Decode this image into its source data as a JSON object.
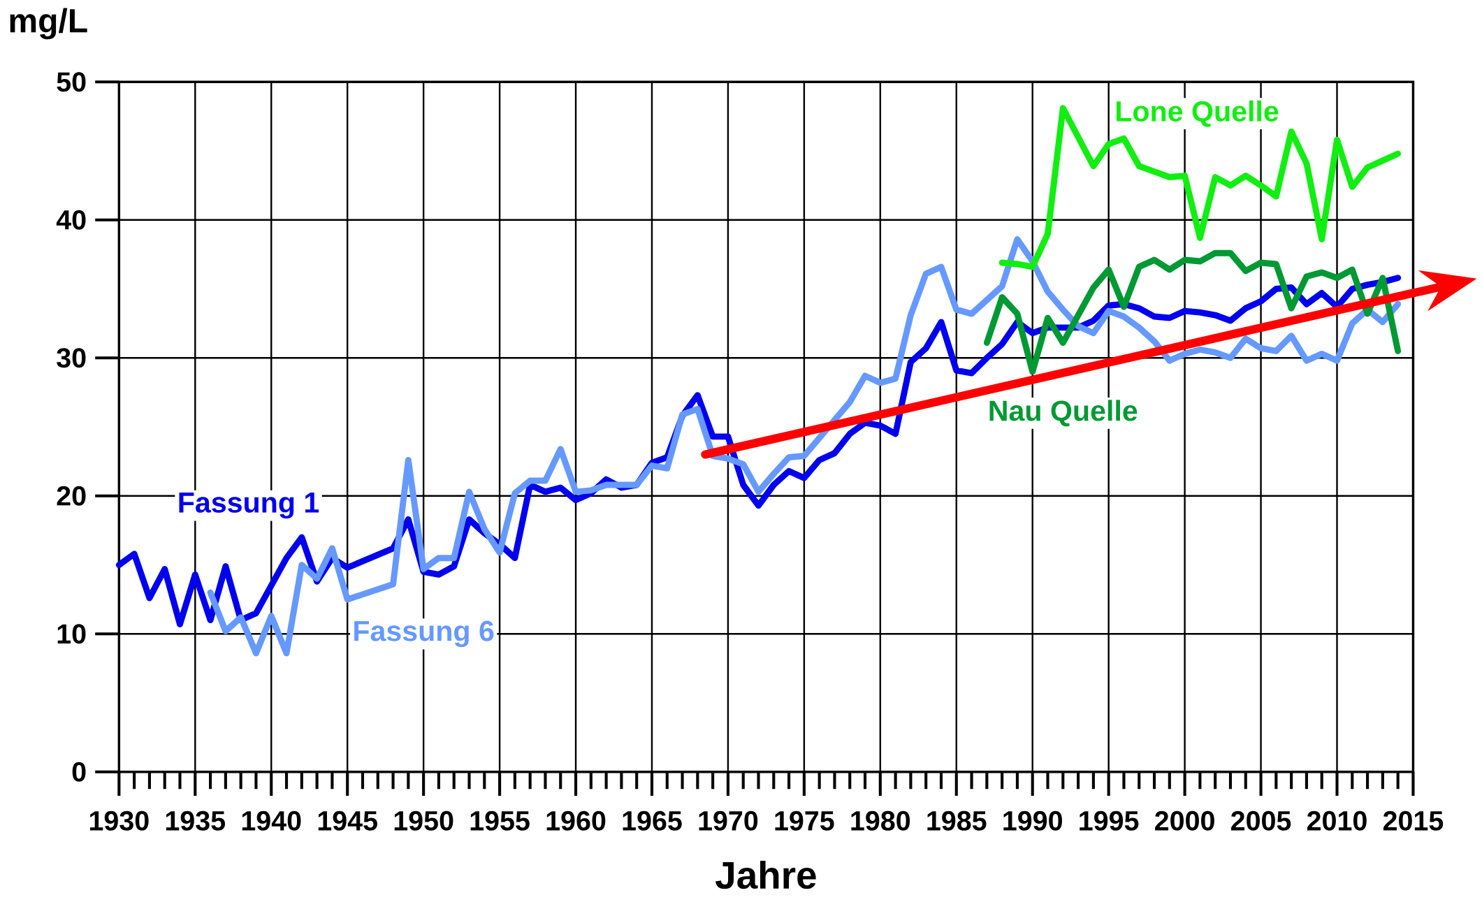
{
  "chart_data": {
    "type": "line",
    "xlabel": "Jahre",
    "ylabel": "mg/L",
    "xlim": [
      1930,
      2015
    ],
    "ylim": [
      0,
      50
    ],
    "xticks": [
      1930,
      1935,
      1940,
      1945,
      1950,
      1955,
      1960,
      1965,
      1970,
      1975,
      1980,
      1985,
      1990,
      1995,
      2000,
      2005,
      2010,
      2015
    ],
    "yticks": [
      0,
      10,
      20,
      30,
      40,
      50
    ],
    "grid": true,
    "line_style": "solid",
    "series": [
      {
        "name": "Fassung 1",
        "color": "#0000ee",
        "x": [
          1930,
          1931,
          1932,
          1933,
          1934,
          1935,
          1936,
          1937,
          1938,
          1939,
          1940,
          1941,
          1942,
          1943,
          1944,
          1945,
          1948,
          1949,
          1950,
          1951,
          1952,
          1953,
          1954,
          1955,
          1956,
          1957,
          1958,
          1959,
          1960,
          1961,
          1962,
          1963,
          1964,
          1965,
          1966,
          1967,
          1968,
          1969,
          1970,
          1971,
          1972,
          1973,
          1974,
          1975,
          1976,
          1977,
          1978,
          1979,
          1980,
          1981,
          1982,
          1983,
          1984,
          1985,
          1986,
          1987,
          1988,
          1989,
          1990,
          1991,
          1992,
          1993,
          1994,
          1995,
          1996,
          1997,
          1998,
          1999,
          2000,
          2001,
          2002,
          2003,
          2004,
          2005,
          2006,
          2007,
          2008,
          2009,
          2010,
          2011,
          2012,
          2013,
          2014
        ],
        "values": [
          15.0,
          15.8,
          12.6,
          14.7,
          10.7,
          14.3,
          11.0,
          14.9,
          11.0,
          11.5,
          13.5,
          15.5,
          17.0,
          13.8,
          15.5,
          14.8,
          16.2,
          18.3,
          14.5,
          14.3,
          14.9,
          18.3,
          17.3,
          16.5,
          15.5,
          20.8,
          20.3,
          20.6,
          19.7,
          20.2,
          21.2,
          20.6,
          20.8,
          22.4,
          22.8,
          25.8,
          27.3,
          24.3,
          24.3,
          20.8,
          19.3,
          20.8,
          21.8,
          21.3,
          22.6,
          23.1,
          24.5,
          25.3,
          25.1,
          24.5,
          29.7,
          30.7,
          32.6,
          29.1,
          28.9,
          30.0,
          31.0,
          32.6,
          31.8,
          32.2,
          32.2,
          32.2,
          32.7,
          33.8,
          33.9,
          33.6,
          33.0,
          32.9,
          33.4,
          33.3,
          33.1,
          32.7,
          33.6,
          34.1,
          35.0,
          35.1,
          33.9,
          34.7,
          33.7,
          35.0,
          35.3,
          35.5,
          35.8
        ]
      },
      {
        "name": "Fassung 6",
        "color": "#6699ff",
        "x": [
          1936,
          1937,
          1938,
          1939,
          1940,
          1941,
          1942,
          1943,
          1944,
          1945,
          1948,
          1949,
          1950,
          1951,
          1952,
          1953,
          1954,
          1955,
          1956,
          1957,
          1958,
          1959,
          1960,
          1961,
          1962,
          1963,
          1964,
          1965,
          1966,
          1967,
          1968,
          1969,
          1970,
          1971,
          1972,
          1973,
          1974,
          1975,
          1976,
          1977,
          1978,
          1979,
          1980,
          1981,
          1982,
          1983,
          1984,
          1985,
          1986,
          1987,
          1988,
          1989,
          1990,
          1991,
          1992,
          1993,
          1994,
          1995,
          1996,
          1997,
          1998,
          1999,
          2000,
          2001,
          2002,
          2003,
          2004,
          2005,
          2006,
          2007,
          2008,
          2009,
          2010,
          2011,
          2012,
          2013,
          2014
        ],
        "values": [
          13.0,
          10.2,
          11.2,
          8.6,
          11.3,
          8.6,
          15.0,
          14.0,
          16.2,
          12.5,
          13.6,
          22.6,
          14.7,
          15.5,
          15.5,
          20.3,
          17.6,
          15.9,
          20.2,
          21.1,
          21.1,
          23.4,
          20.3,
          20.4,
          20.8,
          20.8,
          20.8,
          22.2,
          22.0,
          25.9,
          26.3,
          22.9,
          22.7,
          22.3,
          20.3,
          21.6,
          22.8,
          22.9,
          24.2,
          25.5,
          26.8,
          28.7,
          28.2,
          28.5,
          33.1,
          36.1,
          36.6,
          33.5,
          33.2,
          34.2,
          35.2,
          38.6,
          37.0,
          34.8,
          33.5,
          32.3,
          31.8,
          33.4,
          33.0,
          32.2,
          31.2,
          29.8,
          30.3,
          30.6,
          30.4,
          30.0,
          31.4,
          30.7,
          30.5,
          31.6,
          29.8,
          30.3,
          29.8,
          32.5,
          33.5,
          32.6,
          33.9
        ]
      },
      {
        "name": "Lone Quelle",
        "color": "#11ee11",
        "x": [
          1988,
          1989,
          1990,
          1991,
          1992,
          1993,
          1994,
          1995,
          1996,
          1997,
          1998,
          1999,
          2000,
          2001,
          2002,
          2003,
          2004,
          2005,
          2006,
          2007,
          2008,
          2009,
          2010,
          2011,
          2012,
          2013,
          2014
        ],
        "values": [
          36.9,
          36.8,
          36.6,
          39.0,
          48.1,
          46.0,
          43.9,
          45.5,
          45.9,
          43.9,
          43.5,
          43.1,
          43.2,
          38.7,
          43.1,
          42.5,
          43.2,
          42.5,
          41.7,
          46.4,
          44.1,
          38.6,
          45.8,
          42.4,
          43.8,
          44.3,
          44.8
        ]
      },
      {
        "name": "Nau Quelle",
        "color": "#009933",
        "x": [
          1987,
          1988,
          1989,
          1990,
          1991,
          1992,
          1993,
          1994,
          1995,
          1996,
          1997,
          1998,
          1999,
          2000,
          2001,
          2002,
          2003,
          2004,
          2005,
          2006,
          2007,
          2008,
          2009,
          2010,
          2011,
          2012,
          2013,
          2014
        ],
        "values": [
          31.1,
          34.4,
          33.2,
          29.0,
          32.9,
          31.1,
          33.1,
          35.1,
          36.4,
          33.7,
          36.6,
          37.1,
          36.4,
          37.1,
          37.0,
          37.6,
          37.6,
          36.3,
          36.9,
          36.8,
          33.6,
          35.9,
          36.2,
          35.8,
          36.4,
          33.2,
          35.8,
          30.5
        ]
      },
      {
        "type": "line",
        "color": "#ff0000",
        "x": [
          1968.5,
          2015
        ],
        "values": [
          23.0,
          34.7
        ]
      }
    ]
  }
}
